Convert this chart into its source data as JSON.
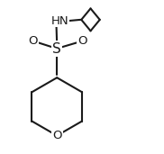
{
  "background": "#ffffff",
  "line_color": "#1a1a1a",
  "line_width": 1.5,
  "font_size_S": 11,
  "font_size_label": 9.5,
  "font_color": "#1a1a1a",
  "S_label": "S",
  "O_label": "O",
  "HN_label": "HN",
  "figsize": [
    1.82,
    1.71
  ],
  "dpi": 100,
  "xlim": [
    -1.0,
    1.4
  ],
  "ylim": [
    -1.3,
    1.0
  ]
}
